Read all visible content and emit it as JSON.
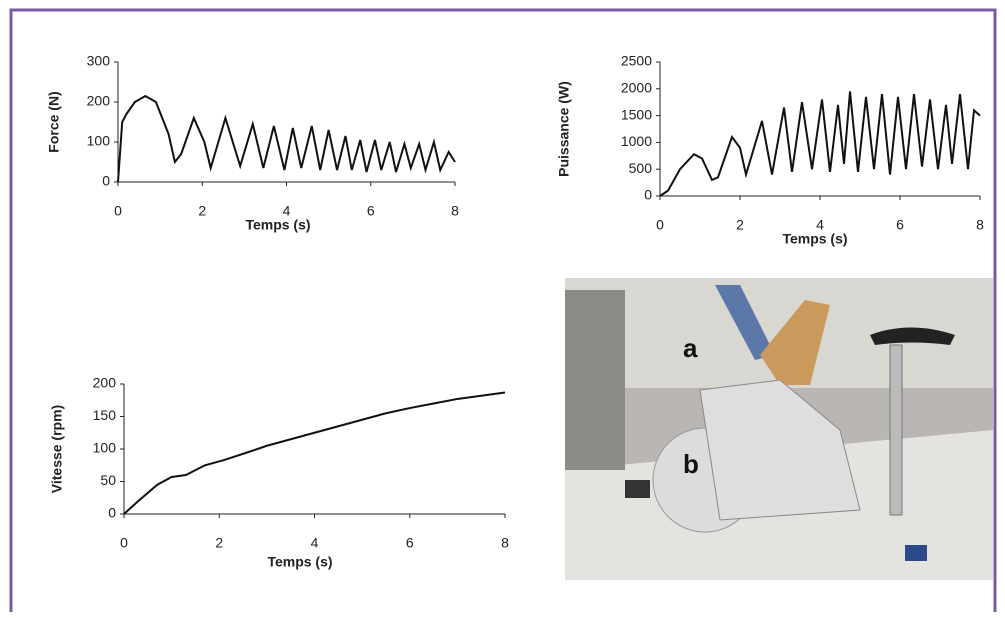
{
  "chart_data": [
    {
      "type": "line",
      "y_label": "Force (N)",
      "x_label": "Temps (s)",
      "x": [
        0,
        0.1,
        0.2,
        0.4,
        0.65,
        0.9,
        1.2,
        1.35,
        1.5,
        1.8,
        2.05,
        2.2,
        2.55,
        2.9,
        3.2,
        3.45,
        3.7,
        3.95,
        4.15,
        4.35,
        4.6,
        4.8,
        5.0,
        5.2,
        5.4,
        5.55,
        5.75,
        5.9,
        6.1,
        6.25,
        6.45,
        6.6,
        6.8,
        6.95,
        7.15,
        7.3,
        7.5,
        7.65,
        7.85,
        8
      ],
      "values": [
        0,
        150,
        170,
        200,
        215,
        200,
        120,
        50,
        70,
        160,
        100,
        35,
        160,
        40,
        145,
        35,
        140,
        30,
        135,
        35,
        140,
        30,
        130,
        30,
        115,
        30,
        105,
        25,
        105,
        30,
        100,
        25,
        95,
        35,
        95,
        30,
        100,
        30,
        75,
        50
      ],
      "color": "#111111",
      "xlim": [
        0,
        8
      ],
      "ylim": [
        0,
        300
      ],
      "xticks": [
        0,
        2,
        4,
        6,
        8
      ],
      "yticks": [
        0,
        100,
        200,
        300
      ]
    },
    {
      "type": "line",
      "y_label": "Puissance (W)",
      "x_label": "Temps (s)",
      "x": [
        0,
        0.2,
        0.5,
        0.85,
        1.05,
        1.3,
        1.45,
        1.8,
        2.0,
        2.15,
        2.55,
        2.8,
        3.1,
        3.3,
        3.55,
        3.8,
        4.05,
        4.25,
        4.45,
        4.6,
        4.75,
        4.95,
        5.15,
        5.35,
        5.55,
        5.75,
        5.95,
        6.15,
        6.35,
        6.55,
        6.75,
        6.95,
        7.15,
        7.3,
        7.5,
        7.7,
        7.85,
        8
      ],
      "values": [
        0,
        100,
        500,
        780,
        700,
        300,
        350,
        1100,
        900,
        400,
        1400,
        400,
        1650,
        450,
        1750,
        500,
        1800,
        450,
        1700,
        600,
        1950,
        450,
        1850,
        500,
        1900,
        400,
        1850,
        500,
        1900,
        550,
        1800,
        500,
        1700,
        600,
        1900,
        500,
        1600,
        1500
      ],
      "color": "#111111",
      "xlim": [
        0,
        8
      ],
      "ylim": [
        0,
        2500
      ],
      "xticks": [
        0,
        2,
        4,
        6,
        8
      ],
      "yticks": [
        0,
        500,
        1000,
        1500,
        2000,
        2500
      ]
    },
    {
      "type": "line",
      "y_label": "Vitesse (rpm)",
      "x_label": "Temps (s)",
      "x": [
        0,
        0.3,
        0.7,
        1.0,
        1.3,
        1.7,
        2.1,
        2.6,
        3.0,
        3.5,
        4.0,
        4.5,
        5.0,
        5.5,
        6.0,
        6.5,
        7.0,
        7.5,
        8
      ],
      "values": [
        0,
        20,
        45,
        57,
        60,
        75,
        83,
        95,
        105,
        115,
        125,
        135,
        145,
        155,
        163,
        170,
        177,
        182,
        187
      ],
      "color": "#111111",
      "xlim": [
        0,
        8
      ],
      "ylim": [
        0,
        200
      ],
      "xticks": [
        0,
        2,
        4,
        6,
        8
      ],
      "yticks": [
        0,
        50,
        100,
        150,
        200
      ]
    }
  ],
  "photo": {
    "labels": [
      "a",
      "b"
    ]
  }
}
